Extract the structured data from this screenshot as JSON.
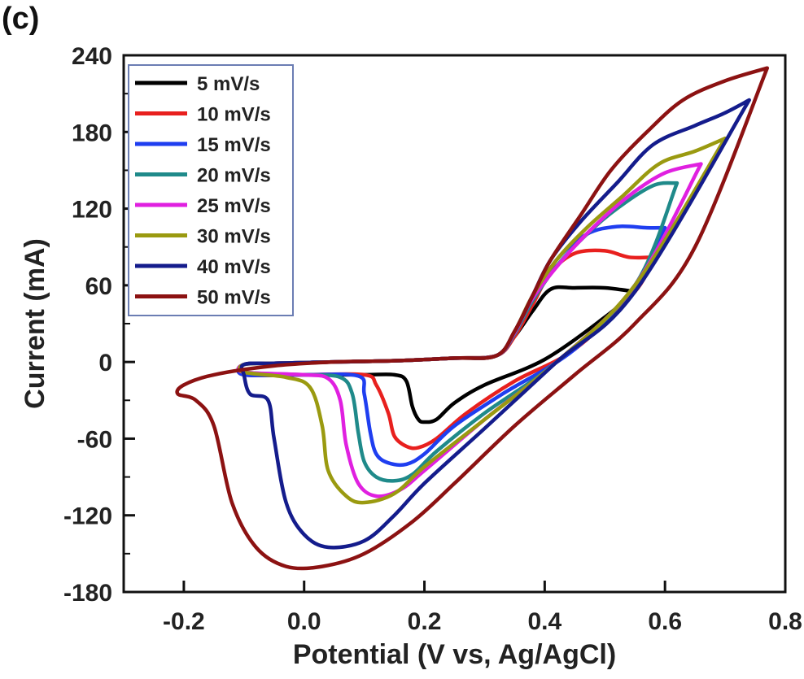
{
  "panel_label": "(c)",
  "chart_data": {
    "type": "line",
    "title": "",
    "xlabel": "Potential (V vs, Ag/AgCl)",
    "ylabel": "Current (mA)",
    "xlim": [
      -0.3,
      0.8
    ],
    "ylim": [
      -180,
      240
    ],
    "xticks": [
      -0.2,
      0.0,
      0.2,
      0.4,
      0.6,
      0.8
    ],
    "xtick_labels": [
      "-0.2",
      "0.0",
      "0.2",
      "0.4",
      "0.6",
      "0.8"
    ],
    "yticks": [
      -180,
      -120,
      -60,
      0,
      60,
      120,
      180,
      240
    ],
    "ytick_labels": [
      "-180",
      "-120",
      "-60",
      "0",
      "60",
      "120",
      "180",
      "240"
    ],
    "grid": false,
    "legend_position": "top-left",
    "series": [
      {
        "name": "5 mV/s",
        "color": "#000000",
        "x": [
          0.55,
          0.5,
          0.45,
          0.41,
          0.38,
          0.35,
          0.32,
          0.25,
          0.15,
          0.05,
          -0.05,
          -0.1,
          -0.1,
          0.0,
          0.1,
          0.15,
          0.17,
          0.18,
          0.19,
          0.2,
          0.22,
          0.25,
          0.3,
          0.4,
          0.5,
          0.55
        ],
        "y": [
          55,
          58,
          58,
          57,
          40,
          20,
          5,
          3,
          1,
          0,
          -1,
          -2,
          -10,
          -10,
          -10,
          -10,
          -15,
          -35,
          -45,
          -47,
          -45,
          -32,
          -18,
          2,
          35,
          55
        ]
      },
      {
        "name": "10 mV/s",
        "color": "#e8201e",
        "x": [
          0.58,
          0.54,
          0.5,
          0.45,
          0.41,
          0.38,
          0.35,
          0.32,
          0.25,
          0.15,
          0.05,
          -0.05,
          -0.1,
          -0.1,
          0.0,
          0.1,
          0.12,
          0.14,
          0.15,
          0.17,
          0.19,
          0.22,
          0.27,
          0.35,
          0.45,
          0.55,
          0.58
        ],
        "y": [
          82,
          82,
          87,
          85,
          70,
          45,
          20,
          5,
          3,
          1,
          0,
          -1,
          -2,
          -10,
          -10,
          -10,
          -18,
          -40,
          -58,
          -66,
          -67,
          -60,
          -40,
          -15,
          10,
          55,
          82
        ]
      },
      {
        "name": "15 mV/s",
        "color": "#1f3ef0",
        "x": [
          0.6,
          0.57,
          0.52,
          0.47,
          0.42,
          0.38,
          0.35,
          0.32,
          0.25,
          0.15,
          0.05,
          -0.05,
          -0.1,
          -0.1,
          0.0,
          0.09,
          0.1,
          0.11,
          0.12,
          0.14,
          0.17,
          0.2,
          0.25,
          0.33,
          0.45,
          0.55,
          0.6
        ],
        "y": [
          105,
          105,
          106,
          100,
          80,
          50,
          22,
          5,
          3,
          1,
          0,
          -1,
          -2,
          -10,
          -10,
          -11,
          -25,
          -55,
          -72,
          -79,
          -80,
          -72,
          -50,
          -25,
          10,
          60,
          105
        ]
      },
      {
        "name": "20 mV/s",
        "color": "#1f8a8a",
        "x": [
          0.62,
          0.58,
          0.52,
          0.47,
          0.42,
          0.38,
          0.35,
          0.32,
          0.25,
          0.15,
          0.05,
          -0.05,
          -0.1,
          -0.1,
          0.0,
          0.06,
          0.08,
          0.09,
          0.1,
          0.12,
          0.15,
          0.18,
          0.22,
          0.3,
          0.42,
          0.55,
          0.62
        ],
        "y": [
          140,
          138,
          120,
          100,
          75,
          48,
          22,
          5,
          3,
          1,
          0,
          -1,
          -2,
          -8,
          -10,
          -12,
          -25,
          -55,
          -78,
          -90,
          -93,
          -88,
          -70,
          -40,
          0,
          60,
          140
        ]
      },
      {
        "name": "25 mV/s",
        "color": "#e020e0",
        "x": [
          0.66,
          0.6,
          0.54,
          0.48,
          0.43,
          0.38,
          0.35,
          0.32,
          0.25,
          0.15,
          0.05,
          -0.05,
          -0.1,
          -0.1,
          0.0,
          0.04,
          0.06,
          0.07,
          0.09,
          0.12,
          0.16,
          0.2,
          0.3,
          0.42,
          0.55,
          0.66
        ],
        "y": [
          155,
          148,
          130,
          105,
          80,
          50,
          23,
          5,
          3,
          1,
          0,
          -1,
          -2,
          -8,
          -10,
          -13,
          -30,
          -65,
          -95,
          -105,
          -100,
          -85,
          -45,
          0,
          60,
          155
        ]
      },
      {
        "name": "30 mV/s",
        "color": "#9a9a10",
        "x": [
          0.7,
          0.65,
          0.59,
          0.53,
          0.47,
          0.42,
          0.38,
          0.35,
          0.32,
          0.25,
          0.15,
          0.05,
          -0.05,
          -0.1,
          -0.1,
          -0.03,
          0.01,
          0.03,
          0.04,
          0.07,
          0.1,
          0.15,
          0.2,
          0.3,
          0.42,
          0.55,
          0.7
        ],
        "y": [
          175,
          165,
          155,
          130,
          105,
          80,
          52,
          24,
          5,
          3,
          1,
          0,
          -1,
          -2,
          -8,
          -12,
          -20,
          -50,
          -85,
          -105,
          -110,
          -103,
          -82,
          -45,
          0,
          60,
          175
        ]
      },
      {
        "name": "40 mV/s",
        "color": "#141c8c",
        "x": [
          0.74,
          0.7,
          0.65,
          0.58,
          0.52,
          0.46,
          0.41,
          0.38,
          0.35,
          0.32,
          0.25,
          0.15,
          0.05,
          -0.05,
          -0.1,
          -0.1,
          -0.09,
          -0.06,
          -0.05,
          -0.03,
          0.0,
          0.04,
          0.1,
          0.15,
          0.2,
          0.3,
          0.42,
          0.55,
          0.74
        ],
        "y": [
          205,
          195,
          185,
          170,
          140,
          110,
          80,
          52,
          24,
          5,
          3,
          1,
          0,
          -1,
          -2,
          -10,
          -25,
          -30,
          -60,
          -110,
          -135,
          -145,
          -140,
          -120,
          -95,
          -52,
          0,
          55,
          205
        ]
      },
      {
        "name": "50 mV/s",
        "color": "#8c1212",
        "x": [
          0.77,
          0.7,
          0.63,
          0.57,
          0.51,
          0.46,
          0.41,
          0.38,
          0.35,
          0.32,
          0.25,
          0.15,
          0.05,
          -0.05,
          -0.15,
          -0.2,
          -0.21,
          -0.18,
          -0.15,
          -0.12,
          -0.08,
          -0.03,
          0.03,
          0.1,
          0.18,
          0.25,
          0.35,
          0.45,
          0.55,
          0.65,
          0.77
        ],
        "y": [
          230,
          220,
          205,
          180,
          150,
          115,
          80,
          52,
          24,
          5,
          3,
          1,
          0,
          -3,
          -10,
          -18,
          -25,
          -30,
          -50,
          -110,
          -145,
          -160,
          -160,
          -150,
          -125,
          -95,
          -50,
          -10,
          30,
          90,
          230
        ]
      }
    ]
  }
}
